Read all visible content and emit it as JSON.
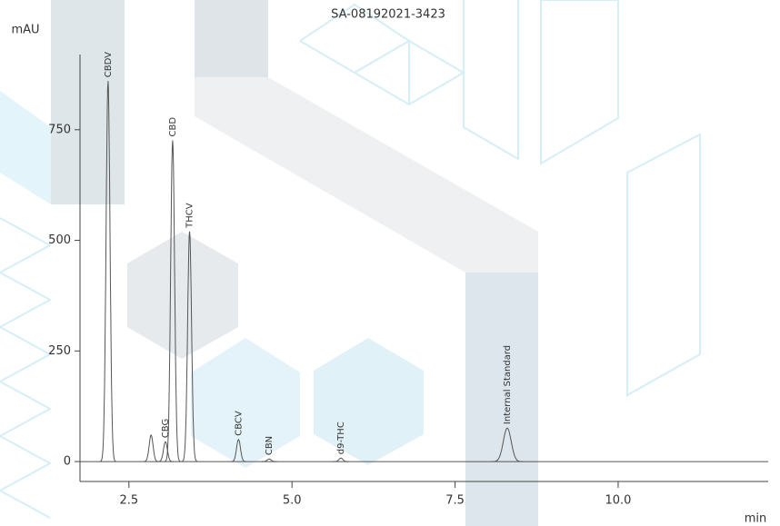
{
  "chart_data": {
    "type": "chromatogram",
    "title": "SA-08192021-3423",
    "ylabel": "mAU",
    "xlabel": "min",
    "categories": [
      "CBDV",
      null,
      "CBG",
      "CBD",
      "THCV",
      "CBCV",
      "CBN",
      "d9-THC",
      "Internal Standard"
    ],
    "x": [
      2.18,
      2.84,
      3.06,
      3.17,
      3.43,
      4.18,
      4.65,
      5.75,
      8.3
    ],
    "values": [
      860,
      60,
      45,
      726,
      520,
      50,
      6,
      8,
      76
    ],
    "color": "#555555",
    "xlim": [
      1.75,
      12.3
    ],
    "ylim": [
      -45,
      920
    ],
    "xticks": [
      2.5,
      {
        "value": 5,
        "label": "5.0"
      },
      7.5,
      {
        "value": 10,
        "label": "10.0"
      }
    ],
    "yticks": [
      0,
      250,
      500,
      750
    ]
  }
}
